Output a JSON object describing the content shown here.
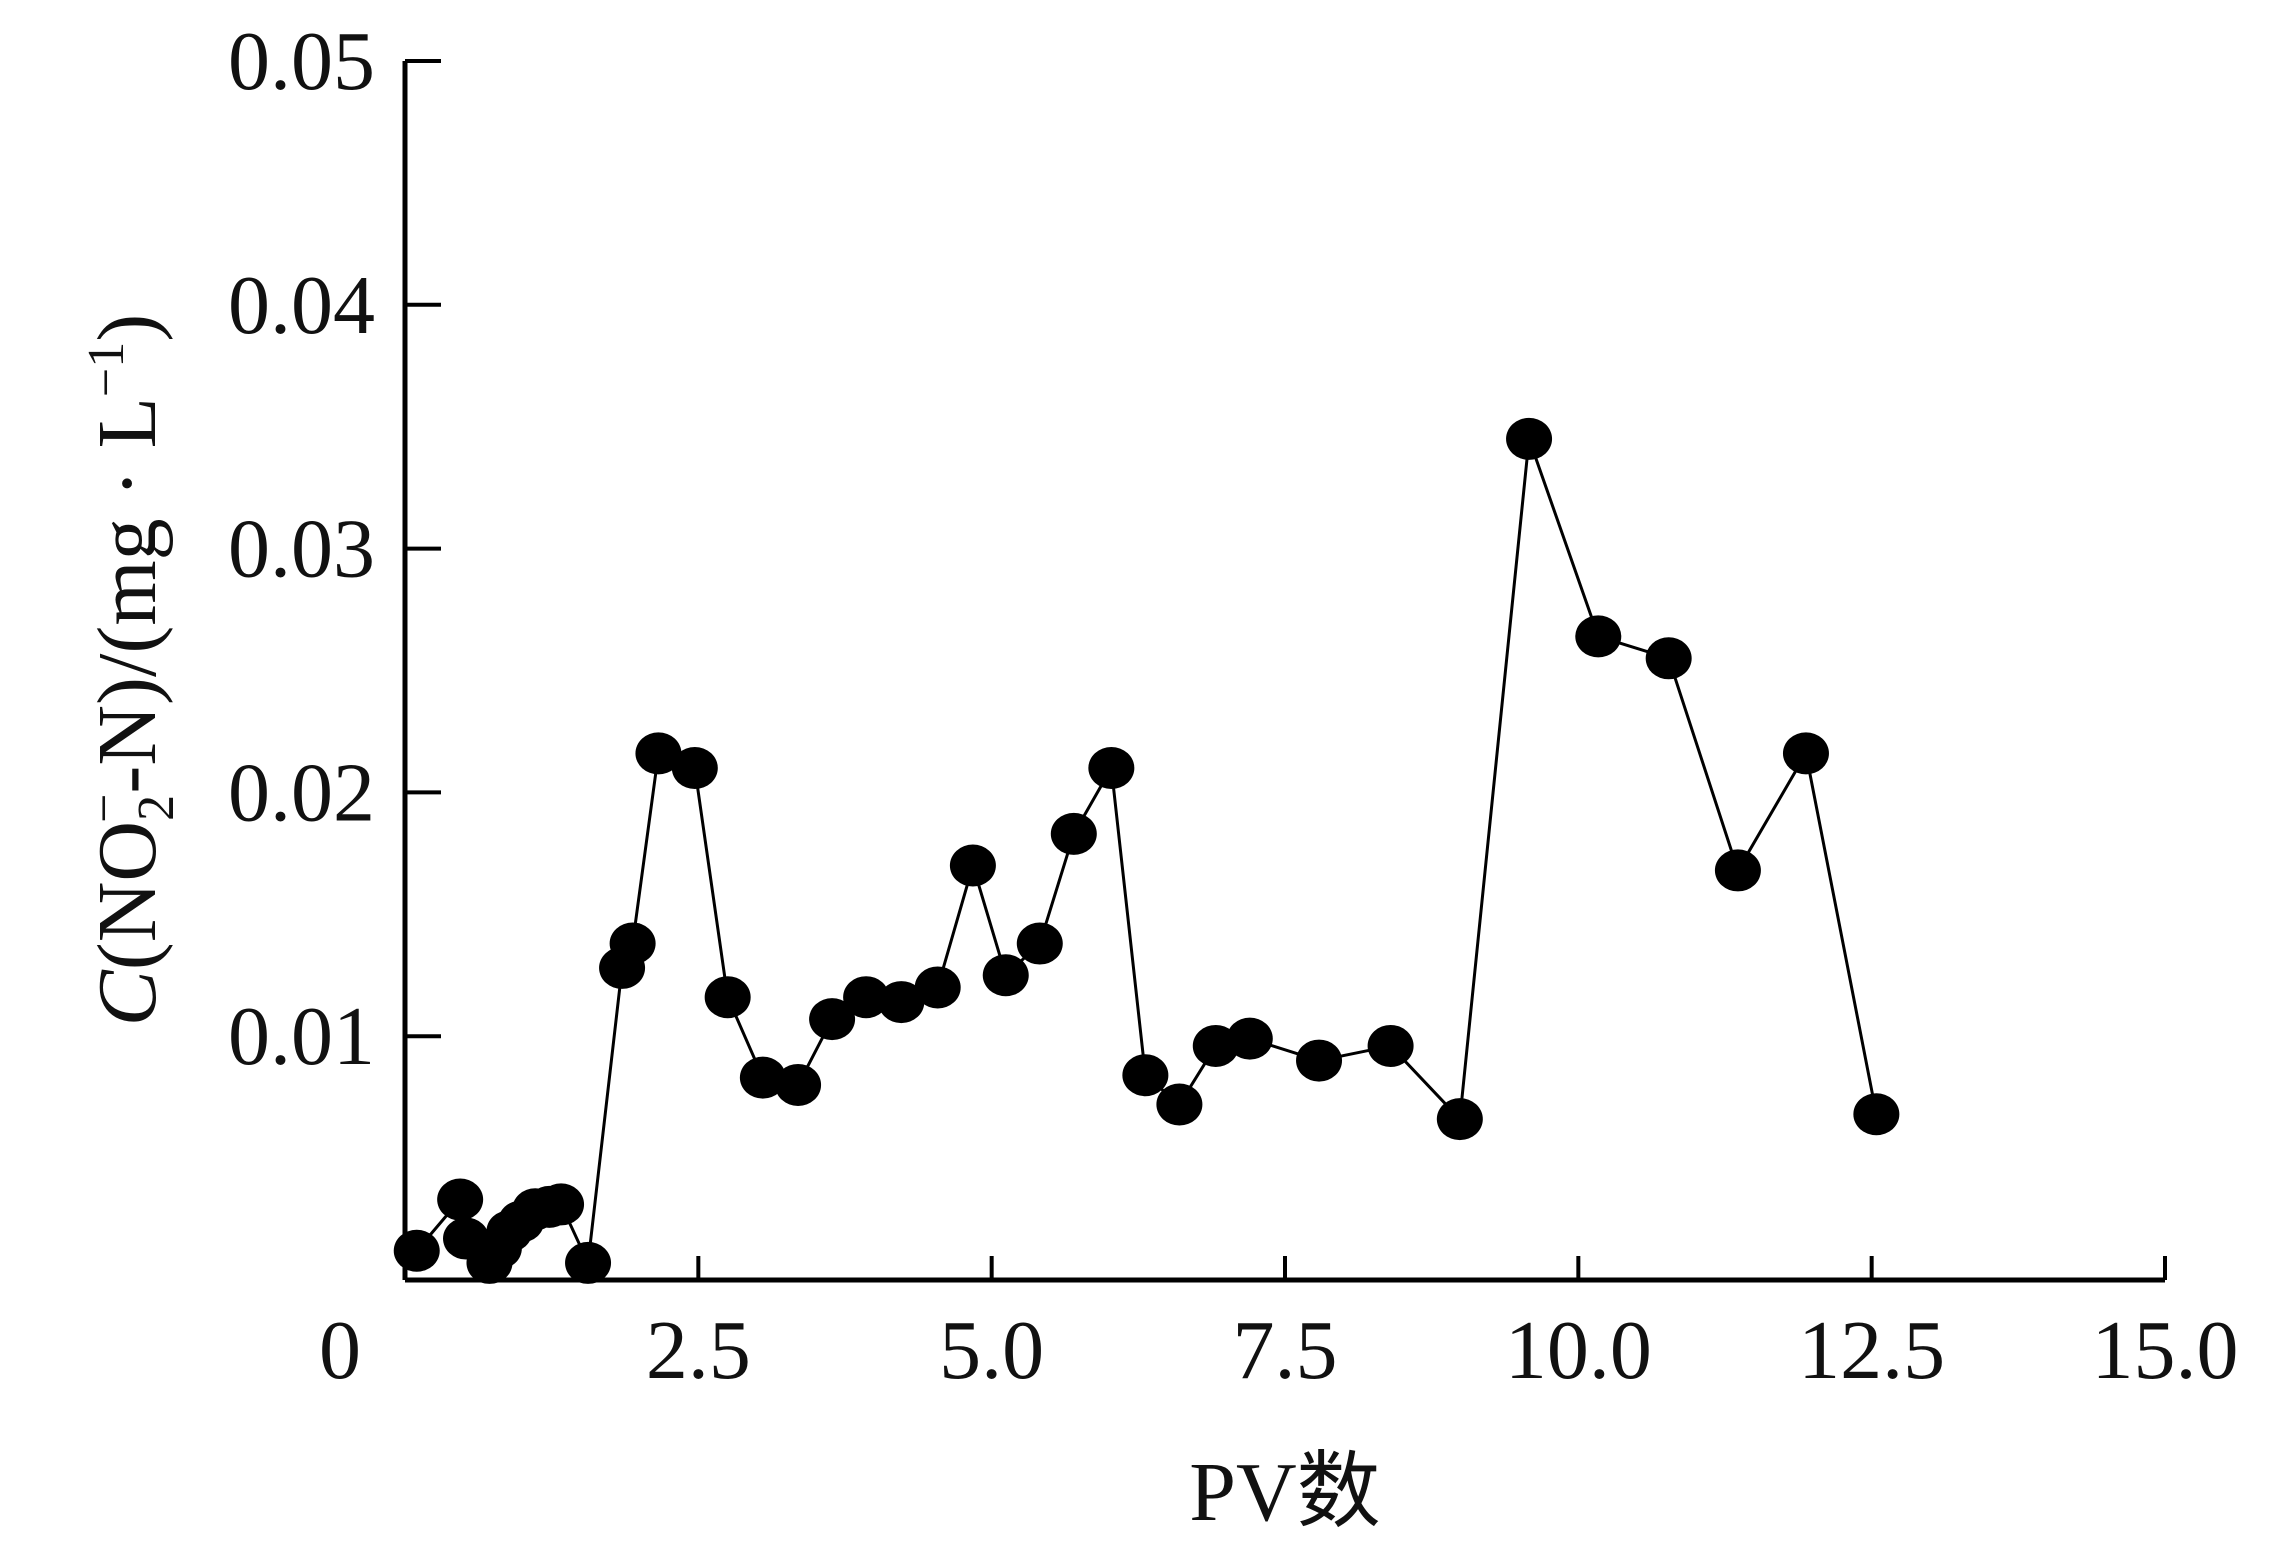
{
  "chart_data": {
    "type": "line",
    "title": "",
    "xlabel": "PV数",
    "ylabel_parts": {
      "c": "C",
      "open": "(NO",
      "sub": "2",
      "sup": "−",
      "rest": "-N)/(mg · L",
      "sup2": "−1",
      "close": ")"
    },
    "xlim": [
      0,
      15
    ],
    "ylim": [
      0,
      0.05
    ],
    "xticks": [
      "0",
      "2.5",
      "5.0",
      "7.5",
      "10.0",
      "12.5",
      "15.0"
    ],
    "yticks": [
      "0.01",
      "0.02",
      "0.03",
      "0.04",
      "0.05"
    ],
    "grid": false,
    "marker": "filled-circle",
    "color": "#000000",
    "x": [
      0.1,
      0.47,
      0.52,
      0.72,
      0.8,
      0.89,
      0.99,
      1.11,
      1.23,
      1.33,
      1.56,
      1.85,
      1.94,
      2.16,
      2.47,
      2.75,
      3.05,
      3.35,
      3.64,
      3.93,
      4.23,
      4.54,
      4.84,
      5.12,
      5.41,
      5.7,
      6.02,
      6.31,
      6.6,
      6.91,
      7.2,
      7.79,
      8.4,
      8.99,
      9.58,
      10.17,
      10.77,
      11.36,
      11.94,
      12.54
    ],
    "y": [
      0.0012,
      0.0033,
      0.0017,
      0.0007,
      0.0013,
      0.002,
      0.0024,
      0.0029,
      0.003,
      0.0031,
      0.0007,
      0.0128,
      0.0138,
      0.0216,
      0.021,
      0.0116,
      0.0083,
      0.008,
      0.0107,
      0.0116,
      0.0114,
      0.012,
      0.017,
      0.0125,
      0.0138,
      0.0183,
      0.021,
      0.0084,
      0.0072,
      0.0096,
      0.0099,
      0.009,
      0.0096,
      0.0066,
      0.0345,
      0.0264,
      0.0255,
      0.0168,
      0.0216,
      0.0068
    ]
  }
}
